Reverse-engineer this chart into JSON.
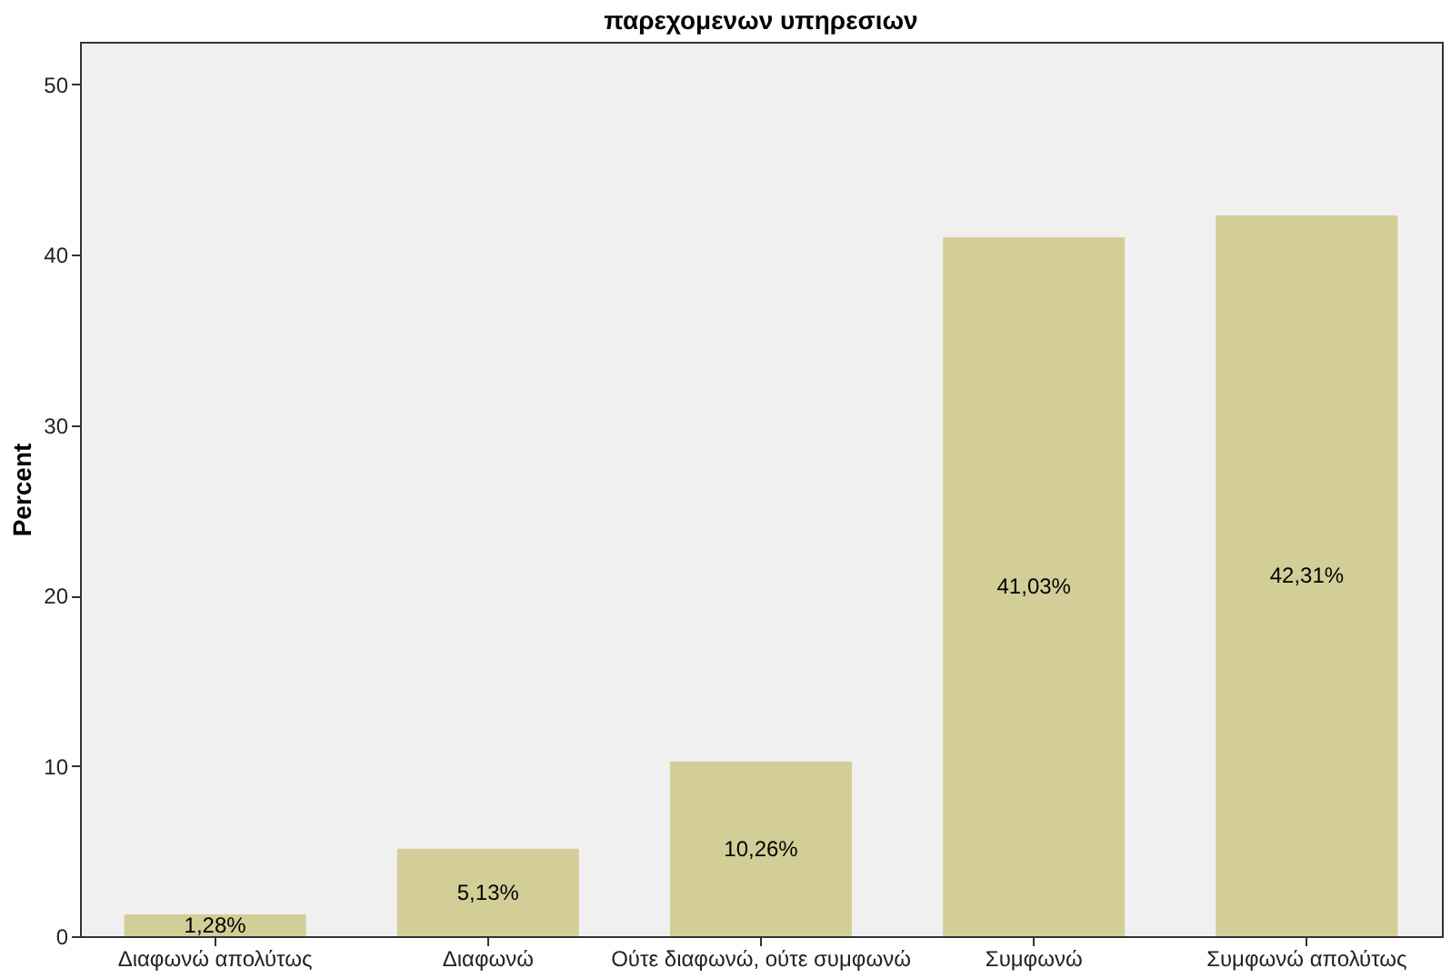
{
  "chart_data": {
    "type": "bar",
    "title": "παρεχομενων υπηρεσιων",
    "ylabel": "Percent",
    "categories": [
      "Διαφωνώ απολύτως",
      "Διαφωνώ",
      "Ούτε διαφωνώ, ούτε συμφωνώ",
      "Συμφωνώ",
      "Συμφωνώ απολύτως"
    ],
    "values": [
      1.28,
      5.13,
      10.26,
      41.03,
      42.31
    ],
    "value_labels": [
      "1,28%",
      "5,13%",
      "10,26%",
      "41,03%",
      "42,31%"
    ],
    "color": "#d3ce97",
    "ylim": [
      0,
      52.5
    ],
    "yticks": [
      0,
      10,
      20,
      30,
      40,
      50
    ],
    "grid": false
  }
}
